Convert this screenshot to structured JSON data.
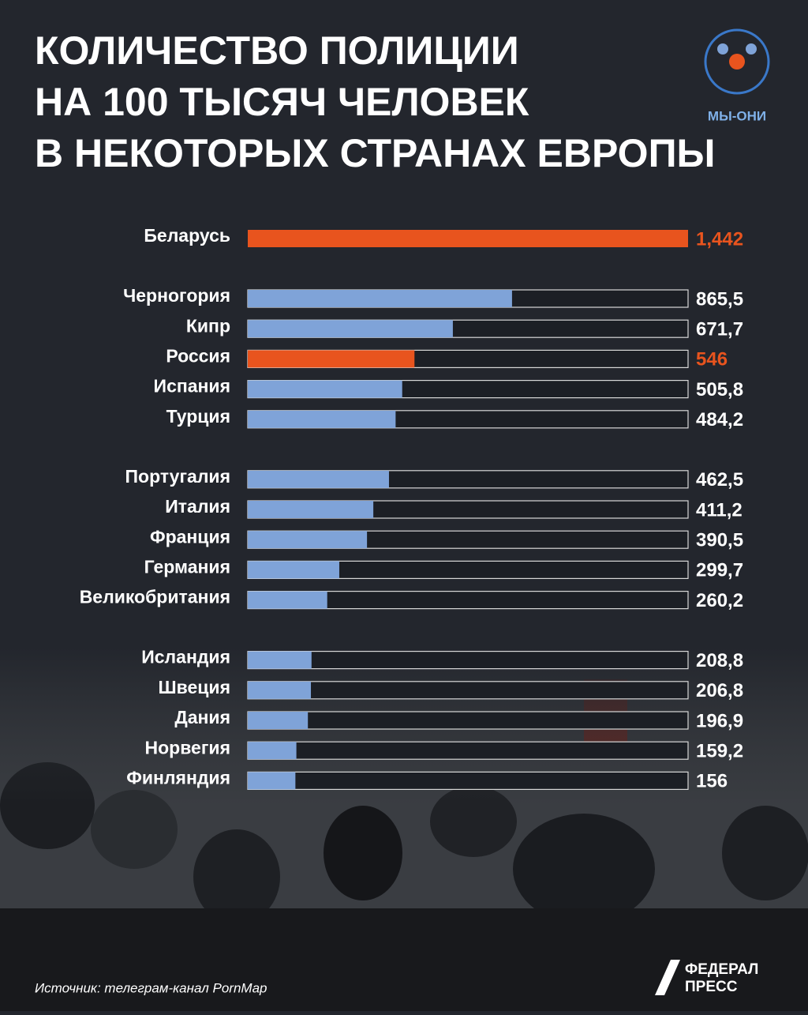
{
  "chart_data": {
    "type": "bar",
    "orientation": "horizontal",
    "title": [
      "КОЛИЧЕСТВО ПОЛИЦИИ",
      "НА 100 ТЫСЯЧ ЧЕЛОВЕК",
      "В НЕКОТОРЫХ СТРАНАХ ЕВРОПЫ"
    ],
    "categories": [
      "Беларусь",
      "Черногория",
      "Кипр",
      "Россия",
      "Испания",
      "Турция",
      "Португалия",
      "Италия",
      "Франция",
      "Германия",
      "Великобритания",
      "Исландия",
      "Швеция",
      "Дания",
      "Норвегия",
      "Финляндия"
    ],
    "values": [
      1442,
      865.5,
      671.7,
      546,
      505.8,
      484.2,
      462.5,
      411.2,
      390.5,
      299.7,
      260.2,
      208.8,
      206.8,
      196.9,
      159.2,
      156
    ],
    "value_labels": [
      "1,442",
      "865,5",
      "671,7",
      "546",
      "505,8",
      "484,2",
      "462,5",
      "411,2",
      "390,5",
      "299,7",
      "260,2",
      "208,8",
      "206,8",
      "196,9",
      "159,2",
      "156"
    ],
    "colors": [
      "#e8541e",
      "#7fa3d8",
      "#7fa3d8",
      "#e8541e",
      "#7fa3d8",
      "#7fa3d8",
      "#7fa3d8",
      "#7fa3d8",
      "#7fa3d8",
      "#7fa3d8",
      "#7fa3d8",
      "#7fa3d8",
      "#7fa3d8",
      "#7fa3d8",
      "#7fa3d8",
      "#7fa3d8"
    ],
    "xlim": [
      0,
      1442
    ]
  },
  "logo": "МЫ-ОНИ",
  "source": "Источник: телеграм-канал PornMap",
  "brand": [
    "ФЕДЕРАЛ",
    "ПРЕСС"
  ]
}
